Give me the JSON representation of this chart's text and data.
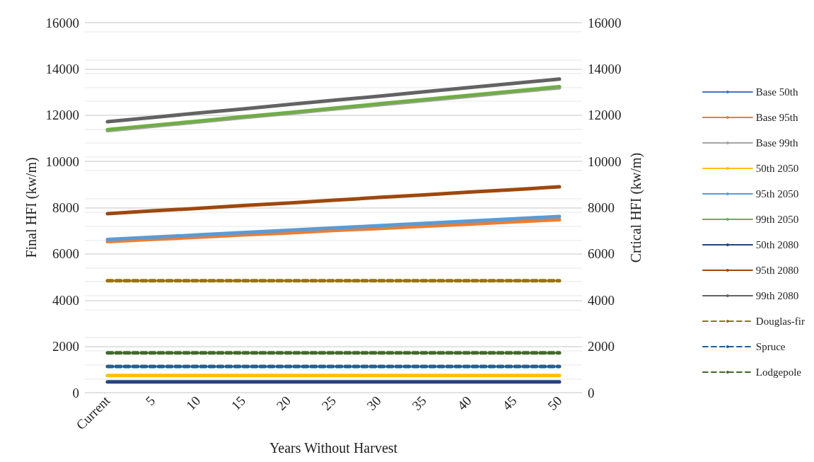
{
  "chart_data": {
    "type": "line",
    "xlabel": "Years Without Harvest",
    "ylabel": "Final HFI (kw/m)",
    "y2label": "Crtical HFI (kw/m)",
    "categories": [
      "Current",
      "5",
      "10",
      "15",
      "20",
      "25",
      "30",
      "35",
      "40",
      "45",
      "50"
    ],
    "ylim": [
      0,
      16000
    ],
    "yticks": [
      0,
      2000,
      4000,
      6000,
      8000,
      10000,
      12000,
      14000,
      16000
    ],
    "y2lim": [
      0,
      16000
    ],
    "y2ticks": [
      0,
      2000,
      4000,
      6000,
      8000,
      10000,
      12000,
      14000,
      16000
    ],
    "grid": "y",
    "legend": "right",
    "marker": "none",
    "line_style": "solid",
    "series": [
      {
        "name": "Base 50th",
        "color": "#4472c4",
        "values": [
          null,
          null,
          null,
          null,
          null,
          null,
          null,
          null,
          null,
          null,
          null
        ]
      },
      {
        "name": "Base 95th",
        "color": "#ed7d31",
        "values": [
          6530,
          6630,
          6720,
          6820,
          6910,
          7010,
          7100,
          7200,
          7290,
          7390,
          7480
        ]
      },
      {
        "name": "Base 99th",
        "color": "#a5a5a5",
        "values": [
          11330,
          11520,
          11700,
          11890,
          12070,
          12260,
          12440,
          12630,
          12810,
          13000,
          13180
        ]
      },
      {
        "name": "50th 2050",
        "color": "#ffc000",
        "values": [
          740,
          740,
          740,
          740,
          740,
          740,
          740,
          740,
          740,
          740,
          740
        ]
      },
      {
        "name": "95th 2050",
        "color": "#5b9bd5",
        "values": [
          6620,
          6720,
          6820,
          6920,
          7020,
          7120,
          7220,
          7320,
          7420,
          7520,
          7620
        ]
      },
      {
        "name": "99th 2050",
        "color": "#70ad47",
        "values": [
          11370,
          11560,
          11740,
          11930,
          12110,
          12300,
          12490,
          12670,
          12860,
          13040,
          13230
        ]
      },
      {
        "name": "50th 2080",
        "color": "#264478",
        "values": [
          470,
          470,
          470,
          470,
          470,
          470,
          470,
          470,
          470,
          470,
          470
        ]
      },
      {
        "name": "95th 2080",
        "color": "#9e480e",
        "values": [
          7740,
          7860,
          7970,
          8090,
          8200,
          8320,
          8440,
          8550,
          8670,
          8780,
          8900
        ]
      },
      {
        "name": "99th 2080",
        "color": "#636363",
        "values": [
          11720,
          11900,
          12090,
          12270,
          12460,
          12640,
          12820,
          13010,
          13190,
          13380,
          13560
        ]
      },
      {
        "name": "Douglas-fir",
        "color": "#997300",
        "line_style": "dashed",
        "values": [
          4840,
          4840,
          4840,
          4840,
          4840,
          4840,
          4840,
          4840,
          4840,
          4840,
          4840
        ]
      },
      {
        "name": "Spruce",
        "color": "#255e91",
        "line_style": "dashed",
        "values": [
          1130,
          1130,
          1130,
          1130,
          1130,
          1130,
          1130,
          1130,
          1130,
          1130,
          1130
        ]
      },
      {
        "name": "Lodgepole",
        "color": "#43682b",
        "line_style": "dashed",
        "values": [
          1720,
          1720,
          1720,
          1720,
          1720,
          1720,
          1720,
          1720,
          1720,
          1720,
          1720
        ]
      }
    ]
  }
}
